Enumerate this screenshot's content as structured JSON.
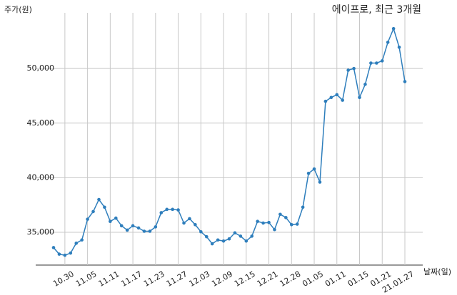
{
  "chart_data": {
    "type": "line",
    "title": "에이프로, 최근 3개월",
    "y_label": "주가(원)",
    "x_label": "날짜(일)",
    "categories": [
      null,
      null,
      "10.30",
      null,
      null,
      null,
      "11.05",
      null,
      null,
      null,
      "11.11",
      null,
      null,
      null,
      "11.17",
      null,
      null,
      null,
      "11.23",
      null,
      null,
      null,
      "11.27",
      null,
      null,
      null,
      "12.03",
      null,
      null,
      null,
      "12.09",
      null,
      null,
      null,
      "12.15",
      null,
      null,
      null,
      "12.21",
      null,
      null,
      null,
      "12.28",
      null,
      null,
      null,
      "01.05",
      null,
      null,
      null,
      "01.11",
      null,
      null,
      null,
      "01.15",
      null,
      null,
      null,
      "01.21",
      null,
      null,
      null,
      "21.01.27"
    ],
    "values": [
      33600,
      33000,
      32900,
      33100,
      34000,
      34300,
      36200,
      36900,
      38000,
      37300,
      36000,
      36300,
      35600,
      35200,
      35600,
      35400,
      35100,
      35100,
      35500,
      36800,
      37100,
      37100,
      37050,
      35850,
      36250,
      35700,
      35050,
      34600,
      33950,
      34300,
      34200,
      34400,
      34950,
      34650,
      34200,
      34650,
      36000,
      35850,
      35900,
      35250,
      36650,
      36350,
      35700,
      35750,
      37300,
      40400,
      40800,
      39600,
      47000,
      47350,
      47600,
      47100,
      49850,
      50000,
      47350,
      48550,
      50500,
      50500,
      50700,
      52400,
      53650,
      51950,
      48800
    ],
    "color": "#2e7ebc",
    "ylim": [
      32000,
      55100
    ],
    "yticks": [
      {
        "value": 35000,
        "label": "35,000"
      },
      {
        "value": 40000,
        "label": "40,000"
      },
      {
        "value": 45000,
        "label": "45,000"
      },
      {
        "value": 50000,
        "label": "50,000"
      }
    ],
    "grid": true
  }
}
